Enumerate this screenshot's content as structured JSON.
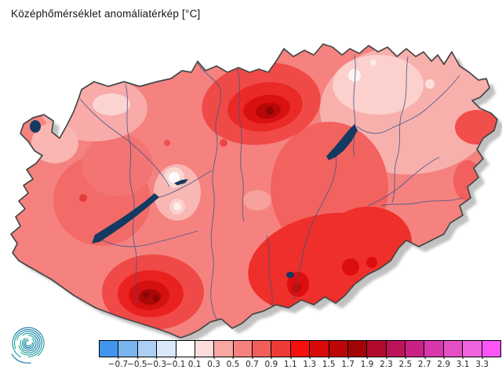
{
  "title": "Középhőmérséklet anomáliatérkép [°C]",
  "colorbar": {
    "tick_labels": [
      "−0.7",
      "−0.5",
      "−0.3",
      "−0.1",
      "0.1",
      "0.3",
      "0.5",
      "0.7",
      "0.9",
      "1.1",
      "1.3",
      "1.5",
      "1.7",
      "1.9",
      "2.3",
      "2.5",
      "2.7",
      "2.9",
      "3.1",
      "3.3"
    ],
    "segment_colors": [
      "#4195ea",
      "#79b4ef",
      "#accff4",
      "#d9e9fa",
      "#ffffff",
      "#fcdcda",
      "#f9a7a3",
      "#f5827f",
      "#f25f5b",
      "#ee3b37",
      "#f60f0f",
      "#d90909",
      "#bd0707",
      "#a10505",
      "#b00b2c",
      "#bd1459",
      "#ca2184",
      "#d837ab",
      "#e44fc5",
      "#f063de",
      "#fb55f7"
    ],
    "border_color": "#000000"
  },
  "map": {
    "colors": {
      "lake": "#143a62",
      "outline": "#474747",
      "innerline": "#3b5489",
      "shadow": "#8f8f8f",
      "base": "#f5827f"
    }
  },
  "logo": {
    "name": "omsz-spiral-logo",
    "gradient": [
      "#41c08f",
      "#2272ae"
    ]
  }
}
